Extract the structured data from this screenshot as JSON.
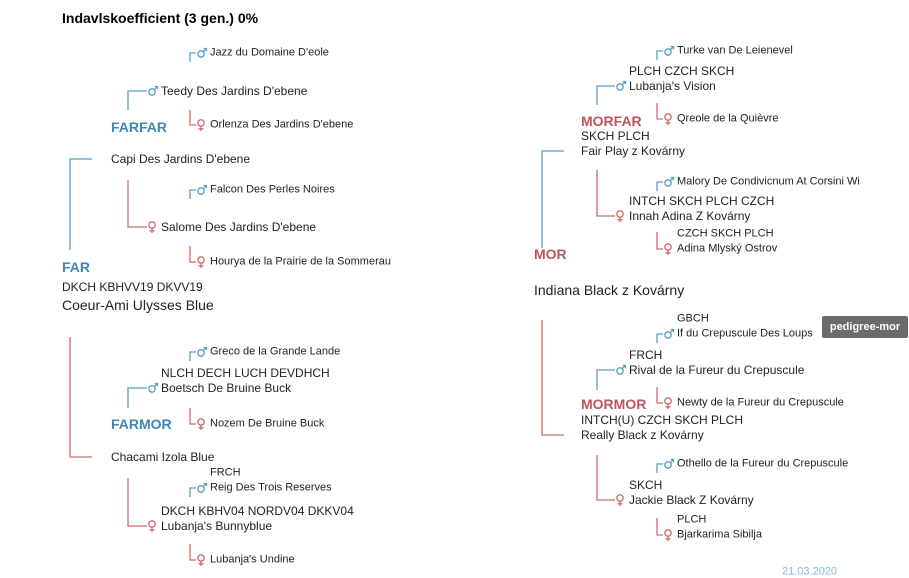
{
  "header": {
    "title": "Indavlskoefficient (3 gen.) 0%"
  },
  "far": {
    "label": "FAR",
    "titles": "DKCH KBHVV19 DKVV19",
    "name": "Coeur-Ami Ulysses Blue",
    "grand_labels": [
      "FARFAR",
      "FARMOR"
    ],
    "entries": [
      {
        "name": "Jazz du Domaine D'eole"
      },
      {
        "name": "Teedy Des Jardins D'ebene"
      },
      {
        "name": "Orlenza Des Jardins D'ebene"
      },
      {
        "name": "Capi Des Jardins D'ebene"
      },
      {
        "name": "Falcon Des Perles Noires"
      },
      {
        "name": "Salome Des Jardins D'ebene"
      },
      {
        "name": "Hourya de la Prairie de la Sommerau"
      },
      {
        "name": "Greco de la Grande Lande"
      },
      {
        "titles": "NLCH DECH LUCH DEVDHCH",
        "name": "Boetsch De Bruine Buck"
      },
      {
        "name": "Nozem De Bruine Buck"
      },
      {
        "name": "Chacami Izola Blue"
      },
      {
        "titles": "FRCH",
        "name": "Reig Des Trois Reserves"
      },
      {
        "titles": "DKCH KBHV04 NORDV04 DKKV04",
        "name": "Lubanja's Bunnyblue"
      },
      {
        "name": "Lubanja's Undine"
      }
    ]
  },
  "mor": {
    "label": "MOR",
    "name": "Indiana Black z Kovárny",
    "grand_labels": [
      "MORFAR",
      "MORMOR"
    ],
    "entries": [
      {
        "name": "Turke van De Leienevel"
      },
      {
        "titles": "PLCH CZCH SKCH",
        "name": "Lubanja's Vision"
      },
      {
        "name": "Qreole de la Quièvre"
      },
      {
        "titles": "SKCH PLCH",
        "name": "Fair Play z Kovárny"
      },
      {
        "name": "Malory De Condivicnum At Corsini Wi"
      },
      {
        "titles": "INTCH SKCH PLCH CZCH",
        "name": "Innah Adina Z Kovárny"
      },
      {
        "titles": "CZCH SKCH PLCH",
        "name": "Adina Mlyský Ostrov"
      },
      {
        "titles": "GBCH",
        "name": "If du Crepuscule Des Loups"
      },
      {
        "titles": "FRCH",
        "name": "Rival de la Fureur du Crepuscule"
      },
      {
        "name": "Newty de la Fureur du Crepuscule"
      },
      {
        "titles": "INTCH(U) CZCH SKCH PLCH",
        "name": "Really Black z Kovárny"
      },
      {
        "name": "Othello de la Fureur du Crepuscule"
      },
      {
        "titles": "SKCH",
        "name": "Jackie Black Z Kovárny"
      },
      {
        "titles": "PLCH",
        "name": "Bjarkarima Sibilja"
      }
    ]
  },
  "tooltip": "pedigree-mor",
  "footer": {
    "date": "21.03.2020"
  }
}
